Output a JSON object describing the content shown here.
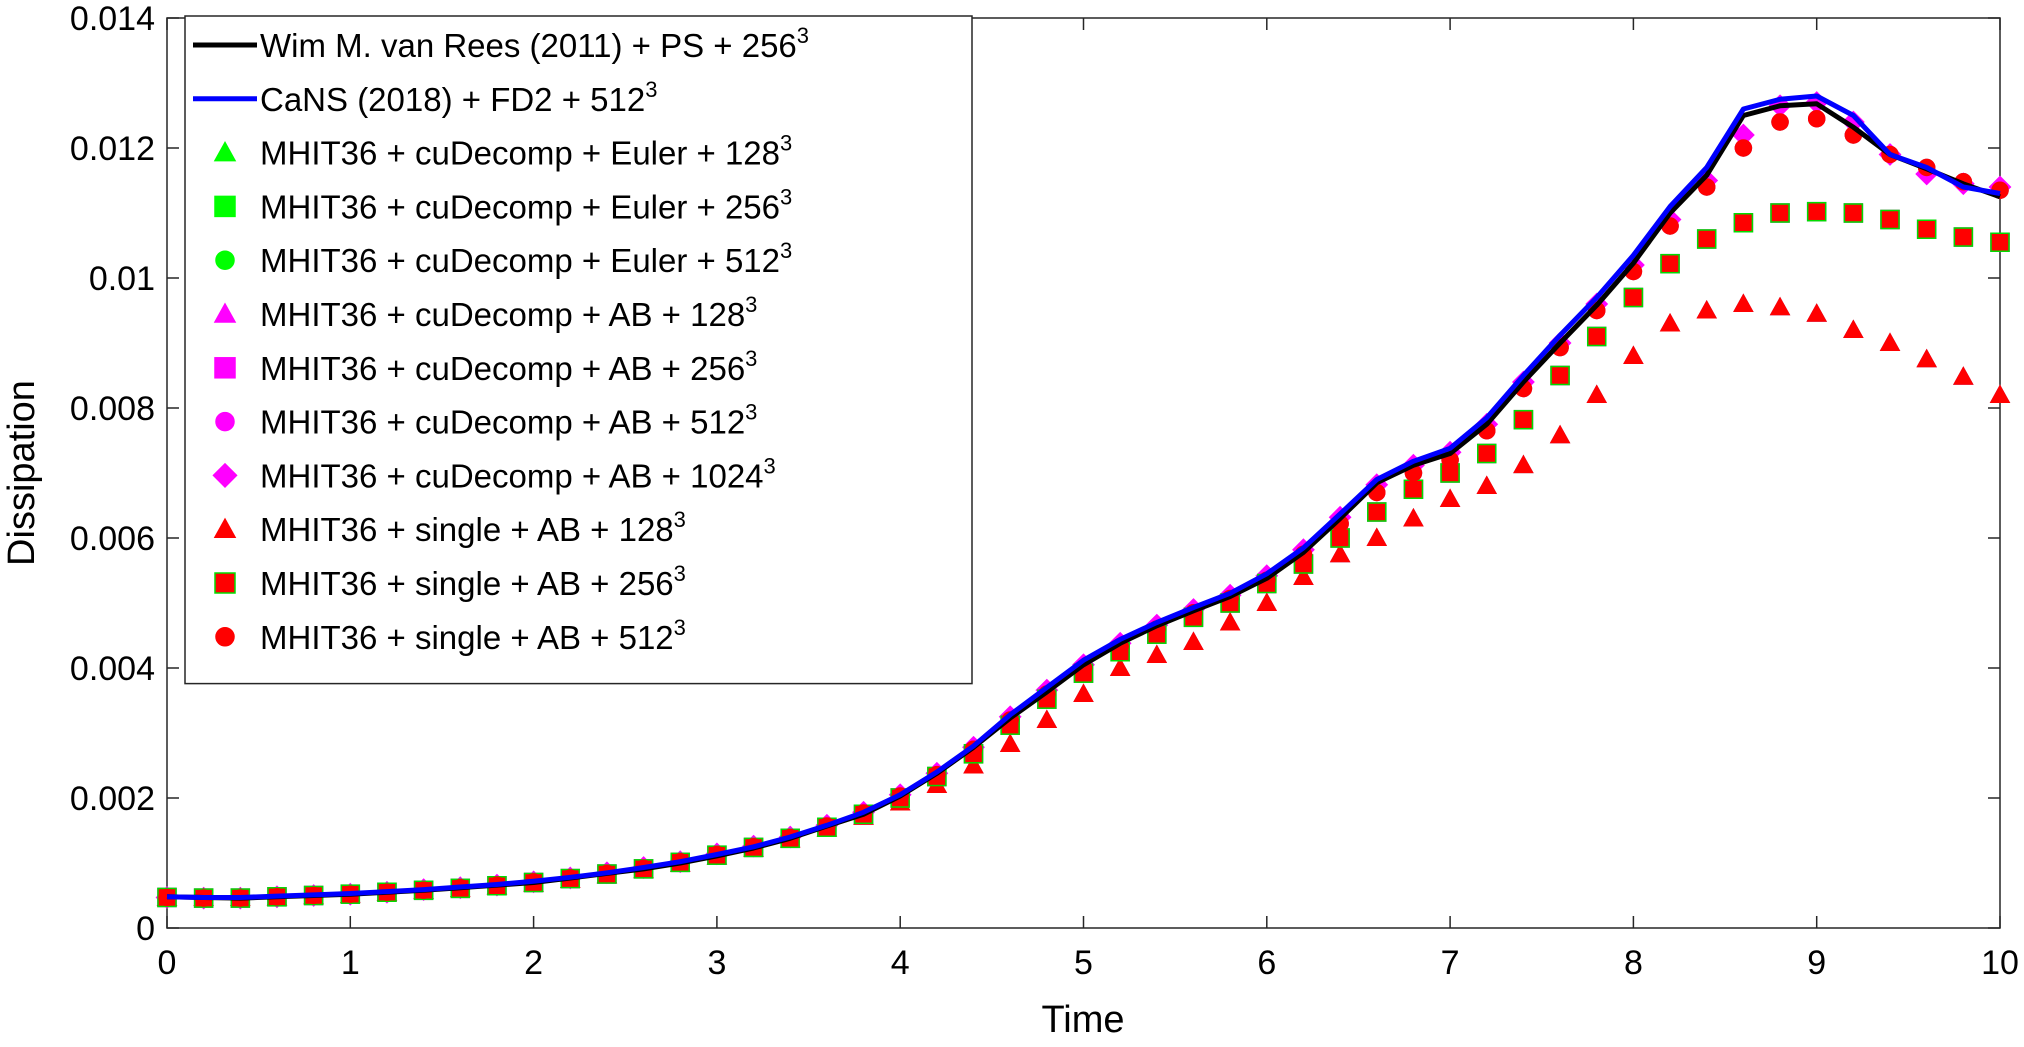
{
  "chart_data": {
    "type": "line",
    "xlabel": "Time",
    "ylabel": "Dissipation",
    "xlim": [
      0,
      10
    ],
    "ylim": [
      0,
      0.014
    ],
    "x_ticks": [
      0,
      1,
      2,
      3,
      4,
      5,
      6,
      7,
      8,
      9,
      10
    ],
    "x_tick_labels": [
      "0",
      "1",
      "2",
      "3",
      "4",
      "5",
      "6",
      "7",
      "8",
      "9",
      "10"
    ],
    "y_ticks": [
      0,
      0.002,
      0.004,
      0.006,
      0.008,
      0.01,
      0.012,
      0.014
    ],
    "y_tick_labels": [
      "0",
      "0.002",
      "0.004",
      "0.006",
      "0.008",
      "0.01",
      "0.012",
      "0.014"
    ],
    "grid": false,
    "legend_position": "top-left",
    "x": [
      0,
      0.2,
      0.4,
      0.6,
      0.8,
      1.0,
      1.2,
      1.4,
      1.6,
      1.8,
      2.0,
      2.2,
      2.4,
      2.6,
      2.8,
      3.0,
      3.2,
      3.4,
      3.6,
      3.8,
      4.0,
      4.2,
      4.4,
      4.6,
      4.8,
      5.0,
      5.2,
      5.4,
      5.6,
      5.8,
      6.0,
      6.2,
      6.4,
      6.6,
      6.8,
      7.0,
      7.2,
      7.4,
      7.6,
      7.8,
      8.0,
      8.2,
      8.4,
      8.6,
      8.8,
      9.0,
      9.2,
      9.4,
      9.6,
      9.8,
      10.0
    ],
    "series": [
      {
        "label_main": "Wim M. van Rees (2011) + PS + 256",
        "label_exp": "3",
        "style": "line",
        "color": "#000000",
        "values": [
          0.00048,
          0.00047,
          0.00046,
          0.00048,
          0.0005,
          0.00052,
          0.00055,
          0.00058,
          0.00062,
          0.00066,
          0.0007,
          0.00077,
          0.00084,
          0.00091,
          0.001,
          0.00111,
          0.00123,
          0.00138,
          0.00157,
          0.00175,
          0.00203,
          0.00238,
          0.00278,
          0.00323,
          0.00363,
          0.00405,
          0.00438,
          0.00465,
          0.00488,
          0.0051,
          0.00538,
          0.00578,
          0.0063,
          0.00685,
          0.00712,
          0.0073,
          0.00775,
          0.0084,
          0.009,
          0.00958,
          0.01023,
          0.011,
          0.01158,
          0.0125,
          0.01265,
          0.01268,
          0.01232,
          0.0119,
          0.01168,
          0.01145,
          0.01125
        ]
      },
      {
        "label_main": "CaNS (2018) + FD2 + 512",
        "label_exp": "3",
        "style": "line",
        "color": "#0000ff",
        "values": [
          0.00048,
          0.00047,
          0.00047,
          0.00049,
          0.00051,
          0.00053,
          0.00056,
          0.00059,
          0.00063,
          0.00067,
          0.00072,
          0.00078,
          0.00085,
          0.00093,
          0.00102,
          0.00113,
          0.00125,
          0.0014,
          0.00158,
          0.00178,
          0.00205,
          0.0024,
          0.0028,
          0.00328,
          0.0037,
          0.00412,
          0.00444,
          0.0047,
          0.00493,
          0.00515,
          0.00545,
          0.00585,
          0.00637,
          0.0069,
          0.00718,
          0.00738,
          0.00785,
          0.0085,
          0.00912,
          0.0097,
          0.01035,
          0.0111,
          0.0117,
          0.0126,
          0.01275,
          0.0128,
          0.0125,
          0.0119,
          0.0117,
          0.0114,
          0.0113
        ]
      },
      {
        "label_main": "MHIT36 + cuDecomp + Euler + 128",
        "label_exp": "3",
        "style": "marker",
        "marker": "triangle",
        "color": "#00ff00",
        "values": [
          0.00046,
          0.00046,
          0.00046,
          0.00047,
          0.00049,
          0.00051,
          0.00054,
          0.00057,
          0.0006,
          0.00064,
          0.00068,
          0.00074,
          0.00081,
          0.00089,
          0.00099,
          0.0011,
          0.00122,
          0.00136,
          0.00153,
          0.00171,
          0.00193,
          0.0022,
          0.0025,
          0.00283,
          0.0032,
          0.0036,
          0.004,
          0.0042,
          0.0044,
          0.0047,
          0.005,
          0.0054,
          0.00575,
          0.006,
          0.0063,
          0.0066,
          0.0068,
          0.00712,
          0.00758,
          0.0082,
          0.0088,
          0.0093,
          0.0095,
          0.0096,
          0.00955,
          0.00945,
          0.0092,
          0.009,
          0.00875,
          0.00848,
          0.0082
        ]
      },
      {
        "label_main": "MHIT36 + cuDecomp + Euler + 256",
        "label_exp": "3",
        "style": "marker",
        "marker": "square",
        "color": "#00ff00",
        "values": [
          0.00047,
          0.00046,
          0.00046,
          0.00048,
          0.0005,
          0.00052,
          0.00055,
          0.00058,
          0.00061,
          0.00065,
          0.0007,
          0.00076,
          0.00083,
          0.00091,
          0.00101,
          0.00112,
          0.00124,
          0.00138,
          0.00155,
          0.00175,
          0.002,
          0.00233,
          0.00268,
          0.00312,
          0.00352,
          0.00392,
          0.00425,
          0.00452,
          0.00478,
          0.005,
          0.0053,
          0.0056,
          0.006,
          0.0064,
          0.00675,
          0.007,
          0.0073,
          0.00782,
          0.0085,
          0.0091,
          0.0097,
          0.01022,
          0.0106,
          0.01085,
          0.011,
          0.01102,
          0.011,
          0.0109,
          0.01075,
          0.01063,
          0.01055
        ]
      },
      {
        "label_main": "MHIT36 + cuDecomp + Euler + 512",
        "label_exp": "3",
        "style": "marker",
        "marker": "circle",
        "color": "#00ff00",
        "values": [
          0.00047,
          0.00046,
          0.00046,
          0.00048,
          0.0005,
          0.00052,
          0.00055,
          0.00058,
          0.00062,
          0.00066,
          0.00071,
          0.00077,
          0.00084,
          0.00092,
          0.00102,
          0.00113,
          0.00125,
          0.00139,
          0.00157,
          0.00177,
          0.00203,
          0.00236,
          0.00275,
          0.0032,
          0.0036,
          0.004,
          0.00433,
          0.0046,
          0.00485,
          0.00507,
          0.00535,
          0.00575,
          0.00622,
          0.0067,
          0.007,
          0.0072,
          0.00765,
          0.0083,
          0.00893,
          0.0095,
          0.0101,
          0.0108,
          0.0114,
          0.012,
          0.0124,
          0.01245,
          0.0122,
          0.0119,
          0.0117,
          0.01148,
          0.01135
        ]
      },
      {
        "label_main": "MHIT36 + cuDecomp + AB + 128",
        "label_exp": "3",
        "style": "marker",
        "marker": "triangle",
        "color": "#ff00ff",
        "values": [
          0.00046,
          0.00046,
          0.00046,
          0.00047,
          0.00049,
          0.00051,
          0.00054,
          0.00057,
          0.0006,
          0.00064,
          0.00068,
          0.00074,
          0.00081,
          0.00089,
          0.00099,
          0.0011,
          0.00122,
          0.00136,
          0.00153,
          0.00171,
          0.00193,
          0.0022,
          0.0025,
          0.00283,
          0.0032,
          0.0036,
          0.004,
          0.0042,
          0.0044,
          0.0047,
          0.005,
          0.0054,
          0.00575,
          0.006,
          0.0063,
          0.0066,
          0.0068,
          0.00712,
          0.00758,
          0.0082,
          0.0088,
          0.0093,
          0.0095,
          0.0096,
          0.00955,
          0.00945,
          0.0092,
          0.009,
          0.00875,
          0.00848,
          0.0082
        ]
      },
      {
        "label_main": "MHIT36 + cuDecomp + AB + 256",
        "label_exp": "3",
        "style": "marker",
        "marker": "square",
        "color": "#ff00ff",
        "values": [
          0.00047,
          0.00046,
          0.00046,
          0.00048,
          0.0005,
          0.00052,
          0.00055,
          0.00058,
          0.00061,
          0.00065,
          0.0007,
          0.00076,
          0.00083,
          0.00091,
          0.00101,
          0.00112,
          0.00124,
          0.00138,
          0.00155,
          0.00175,
          0.002,
          0.00233,
          0.00268,
          0.00312,
          0.00352,
          0.00392,
          0.00425,
          0.00452,
          0.00478,
          0.005,
          0.0053,
          0.0056,
          0.006,
          0.0064,
          0.00675,
          0.007,
          0.0073,
          0.00782,
          0.0085,
          0.0091,
          0.0097,
          0.01022,
          0.0106,
          0.01085,
          0.011,
          0.01102,
          0.011,
          0.0109,
          0.01075,
          0.01063,
          0.01055
        ]
      },
      {
        "label_main": "MHIT36 + cuDecomp + AB + 512",
        "label_exp": "3",
        "style": "marker",
        "marker": "circle",
        "color": "#ff00ff",
        "values": [
          0.00047,
          0.00046,
          0.00046,
          0.00048,
          0.0005,
          0.00052,
          0.00055,
          0.00058,
          0.00062,
          0.00066,
          0.00071,
          0.00077,
          0.00084,
          0.00092,
          0.00102,
          0.00113,
          0.00125,
          0.00139,
          0.00157,
          0.00177,
          0.00203,
          0.00236,
          0.00275,
          0.0032,
          0.0036,
          0.004,
          0.00433,
          0.0046,
          0.00485,
          0.00507,
          0.00535,
          0.00575,
          0.00622,
          0.0067,
          0.007,
          0.0072,
          0.00765,
          0.0083,
          0.00893,
          0.0095,
          0.0101,
          0.0108,
          0.0114,
          0.012,
          0.0124,
          0.01245,
          0.0122,
          0.0119,
          0.0117,
          0.01148,
          0.01135
        ]
      },
      {
        "label_main": "MHIT36 + cuDecomp + AB + 1024",
        "label_exp": "3",
        "style": "marker",
        "marker": "diamond",
        "color": "#ff00ff",
        "values": [
          0.00047,
          0.00046,
          0.00046,
          0.00048,
          0.0005,
          0.00052,
          0.00055,
          0.00059,
          0.00062,
          0.00066,
          0.00071,
          0.00077,
          0.00085,
          0.00093,
          0.00102,
          0.00114,
          0.00126,
          0.0014,
          0.00158,
          0.00178,
          0.00205,
          0.00238,
          0.00278,
          0.00325,
          0.00366,
          0.00405,
          0.00438,
          0.00466,
          0.0049,
          0.00512,
          0.00542,
          0.00582,
          0.00632,
          0.00682,
          0.00712,
          0.00732,
          0.00775,
          0.0084,
          0.009,
          0.0096,
          0.0102,
          0.0109,
          0.0115,
          0.0122,
          0.01265,
          0.0127,
          0.0124,
          0.0119,
          0.0116,
          0.01145,
          0.0114
        ]
      },
      {
        "label_main": "MHIT36 + single + AB + 128",
        "label_exp": "3",
        "style": "marker",
        "marker": "triangle",
        "color": "#ff0000",
        "values": [
          0.00046,
          0.00046,
          0.00046,
          0.00047,
          0.00049,
          0.00051,
          0.00054,
          0.00057,
          0.0006,
          0.00064,
          0.00068,
          0.00074,
          0.00081,
          0.00089,
          0.00099,
          0.0011,
          0.00122,
          0.00136,
          0.00153,
          0.00171,
          0.00193,
          0.0022,
          0.0025,
          0.00283,
          0.0032,
          0.0036,
          0.004,
          0.0042,
          0.0044,
          0.0047,
          0.005,
          0.0054,
          0.00575,
          0.006,
          0.0063,
          0.0066,
          0.0068,
          0.00712,
          0.00758,
          0.0082,
          0.0088,
          0.0093,
          0.0095,
          0.0096,
          0.00955,
          0.00945,
          0.0092,
          0.009,
          0.00875,
          0.00848,
          0.0082
        ]
      },
      {
        "label_main": "MHIT36 + single + AB + 256",
        "label_exp": "3",
        "style": "marker",
        "marker": "square",
        "color": "#ff0000",
        "values": [
          0.00047,
          0.00046,
          0.00046,
          0.00048,
          0.0005,
          0.00052,
          0.00055,
          0.00058,
          0.00061,
          0.00065,
          0.0007,
          0.00076,
          0.00083,
          0.00091,
          0.00101,
          0.00112,
          0.00124,
          0.00138,
          0.00155,
          0.00175,
          0.002,
          0.00233,
          0.00268,
          0.00312,
          0.00352,
          0.00392,
          0.00425,
          0.00452,
          0.00478,
          0.005,
          0.0053,
          0.0056,
          0.006,
          0.0064,
          0.00675,
          0.007,
          0.0073,
          0.00782,
          0.0085,
          0.0091,
          0.0097,
          0.01022,
          0.0106,
          0.01085,
          0.011,
          0.01102,
          0.011,
          0.0109,
          0.01075,
          0.01063,
          0.01055
        ]
      },
      {
        "label_main": "MHIT36 + single + AB + 512",
        "label_exp": "3",
        "style": "marker",
        "marker": "circle",
        "color": "#ff0000",
        "values": [
          0.00047,
          0.00046,
          0.00046,
          0.00048,
          0.0005,
          0.00052,
          0.00055,
          0.00058,
          0.00062,
          0.00066,
          0.00071,
          0.00077,
          0.00084,
          0.00092,
          0.00102,
          0.00113,
          0.00125,
          0.00139,
          0.00157,
          0.00177,
          0.00203,
          0.00236,
          0.00275,
          0.0032,
          0.0036,
          0.004,
          0.00433,
          0.0046,
          0.00485,
          0.00507,
          0.00535,
          0.00575,
          0.00622,
          0.0067,
          0.007,
          0.0072,
          0.00765,
          0.0083,
          0.00893,
          0.0095,
          0.0101,
          0.0108,
          0.0114,
          0.012,
          0.0124,
          0.01245,
          0.0122,
          0.0119,
          0.0117,
          0.01148,
          0.01135
        ]
      }
    ]
  }
}
